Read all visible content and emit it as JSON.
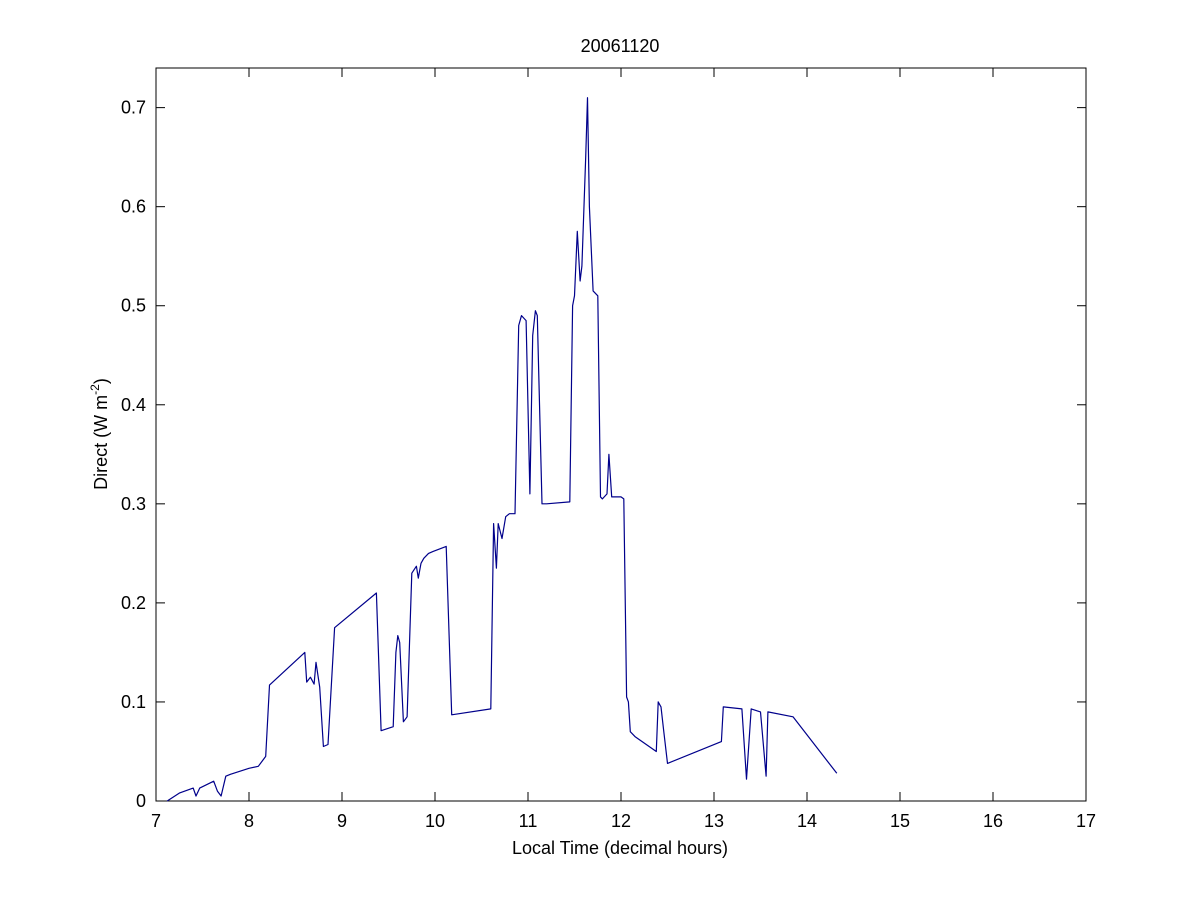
{
  "chart_data": {
    "type": "line",
    "title": "20061120",
    "xlabel": "Local Time (decimal hours)",
    "ylabel": {
      "prefix": "Direct (W m",
      "superscript": "-2",
      "suffix": ")"
    },
    "xlim": [
      7,
      17
    ],
    "ylim": [
      0,
      0.74
    ],
    "xticks": [
      7,
      8,
      9,
      10,
      11,
      12,
      13,
      14,
      15,
      16,
      17
    ],
    "yticks": [
      0,
      0.1,
      0.2,
      0.3,
      0.4,
      0.5,
      0.6,
      0.7
    ],
    "xtick_labels": [
      "7",
      "8",
      "9",
      "10",
      "11",
      "12",
      "13",
      "14",
      "15",
      "16",
      "17"
    ],
    "ytick_labels": [
      "0",
      "0.1",
      "0.2",
      "0.3",
      "0.4",
      "0.5",
      "0.6",
      "0.7"
    ],
    "grid": false,
    "line_color": "#00008b",
    "series": [
      {
        "x": [
          7.12,
          7.25,
          7.4,
          7.43,
          7.47,
          7.62,
          7.66,
          7.7,
          7.75,
          7.8,
          8.0,
          8.1,
          8.18,
          8.22,
          8.6,
          8.62,
          8.66,
          8.7,
          8.72,
          8.76,
          8.8,
          8.85,
          8.92,
          9.37,
          9.42,
          9.55,
          9.58,
          9.6,
          9.62,
          9.66,
          9.7,
          9.75,
          9.8,
          9.82,
          9.85,
          9.88,
          9.93,
          9.98,
          10.12,
          10.18,
          10.6,
          10.63,
          10.66,
          10.68,
          10.72,
          10.76,
          10.8,
          10.86,
          10.9,
          10.93,
          10.98,
          11.02,
          11.05,
          11.08,
          11.1,
          11.15,
          11.2,
          11.45,
          11.48,
          11.5,
          11.53,
          11.56,
          11.58,
          11.62,
          11.64,
          11.66,
          11.7,
          11.75,
          11.78,
          11.8,
          11.85,
          11.87,
          11.9,
          12.0,
          12.03,
          12.06,
          12.08,
          12.1,
          12.15,
          12.38,
          12.4,
          12.43,
          12.46,
          12.5,
          13.08,
          13.1,
          13.3,
          13.35,
          13.4,
          13.5,
          13.56,
          13.58,
          13.85,
          14.32
        ],
        "y": [
          0.0,
          0.008,
          0.013,
          0.005,
          0.013,
          0.02,
          0.01,
          0.005,
          0.025,
          0.027,
          0.033,
          0.035,
          0.045,
          0.117,
          0.15,
          0.12,
          0.125,
          0.118,
          0.14,
          0.115,
          0.055,
          0.057,
          0.175,
          0.21,
          0.071,
          0.075,
          0.15,
          0.167,
          0.16,
          0.08,
          0.085,
          0.23,
          0.237,
          0.225,
          0.24,
          0.245,
          0.25,
          0.252,
          0.257,
          0.087,
          0.093,
          0.28,
          0.235,
          0.28,
          0.265,
          0.287,
          0.29,
          0.29,
          0.48,
          0.49,
          0.485,
          0.31,
          0.47,
          0.495,
          0.49,
          0.3,
          0.3,
          0.302,
          0.5,
          0.51,
          0.575,
          0.525,
          0.54,
          0.65,
          0.71,
          0.6,
          0.515,
          0.51,
          0.307,
          0.305,
          0.31,
          0.35,
          0.307,
          0.307,
          0.305,
          0.105,
          0.1,
          0.07,
          0.065,
          0.05,
          0.1,
          0.095,
          0.07,
          0.038,
          0.06,
          0.095,
          0.093,
          0.022,
          0.093,
          0.09,
          0.025,
          0.09,
          0.085,
          0.028
        ]
      }
    ]
  }
}
